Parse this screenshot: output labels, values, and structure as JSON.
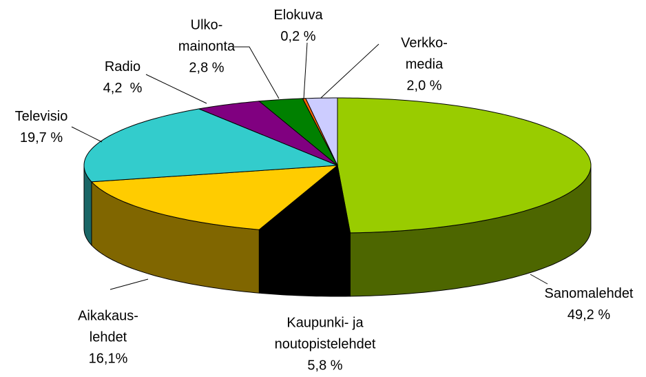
{
  "chart_data": {
    "type": "pie3d",
    "categories": [
      "Sanomalehdet",
      "Kaupunki- ja\nnoutopistelehdet",
      "Aikakaus-\nlehdet",
      "Televisio",
      "Radio",
      "Ulko-\nmainonta",
      "Elokuva",
      "Verkko-\nmedia"
    ],
    "values": [
      49.2,
      5.8,
      16.1,
      19.7,
      4.2,
      2.8,
      0.2,
      2.0
    ],
    "value_labels": [
      "49,2 %",
      "5,8 %",
      "16,1%",
      "19,7 %",
      "4,2  %",
      "2,8 %",
      "0,2 %",
      "2,0 %"
    ],
    "colors": [
      "#99cc00",
      "#000000",
      "#ffcc00",
      "#33cccc",
      "#800080",
      "#008000",
      "#ff6600",
      "#ccccff"
    ]
  }
}
